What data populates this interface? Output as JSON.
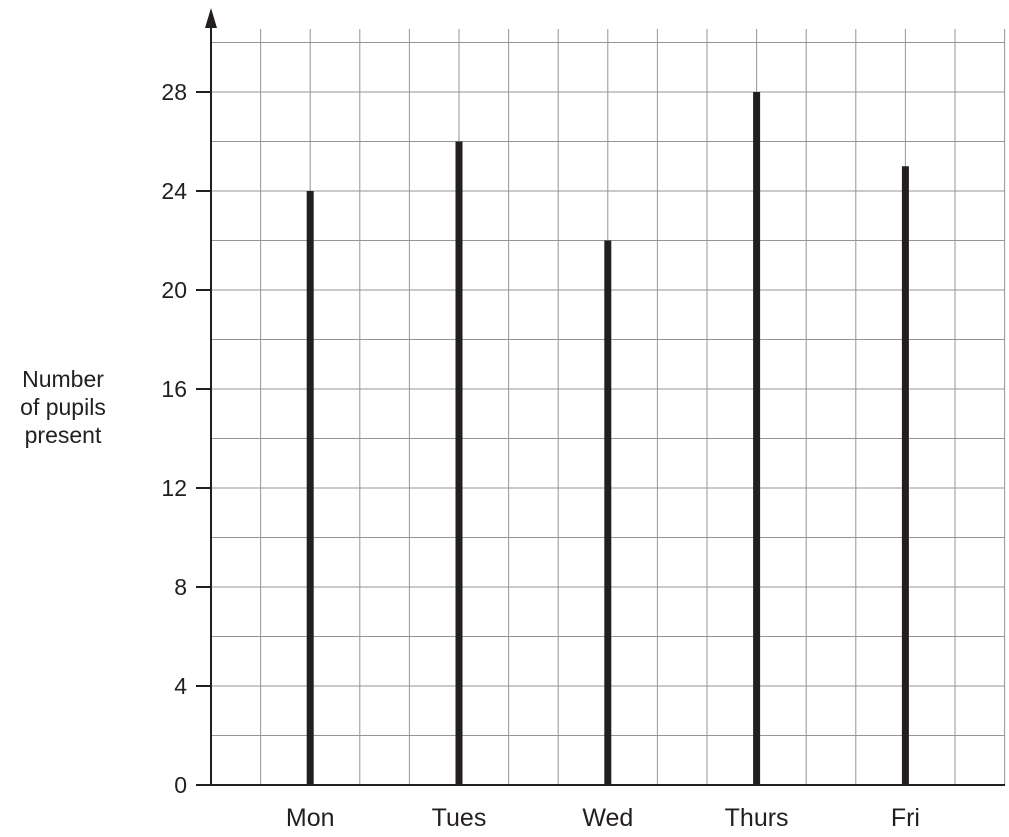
{
  "chart_data": {
    "type": "bar",
    "categories": [
      "Mon",
      "Tues",
      "Wed",
      "Thurs",
      "Fri"
    ],
    "values": [
      24,
      26,
      22,
      28,
      25
    ],
    "ylabel_lines": [
      "Number",
      "of pupils",
      "present"
    ],
    "xlabel": "",
    "yticks": [
      0,
      4,
      8,
      12,
      16,
      20,
      24,
      28
    ],
    "ylim": [
      0,
      28
    ],
    "grid": true,
    "bar_color": "#231f20",
    "grid_color": "#939598",
    "axis_color": "#231f20"
  }
}
